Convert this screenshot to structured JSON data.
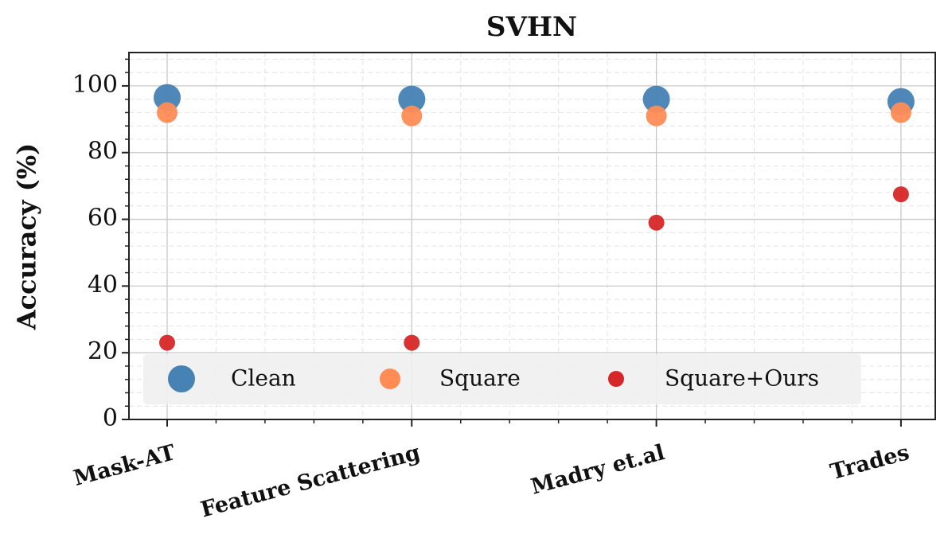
{
  "chart_data": {
    "type": "scatter",
    "title": "SVHN",
    "y_label": "Accuracy (%)",
    "categories": [
      "Mask-AT",
      "Feature Scattering",
      "Madry et.al",
      "Trades"
    ],
    "series": [
      {
        "name": "Clean",
        "color": "#4682b4",
        "values": [
          96.5,
          96,
          96,
          95.3
        ]
      },
      {
        "name": "Square",
        "color": "#ff8c55",
        "values": [
          92,
          91,
          91,
          92
        ]
      },
      {
        "name": "Square+Ours",
        "color": "#d62728",
        "values": [
          23,
          23,
          59,
          67.5
        ]
      }
    ],
    "ylim": [
      0,
      110
    ],
    "yticks": [
      0,
      20,
      40,
      60,
      80,
      100
    ],
    "grid": true,
    "legend": "lower left"
  }
}
